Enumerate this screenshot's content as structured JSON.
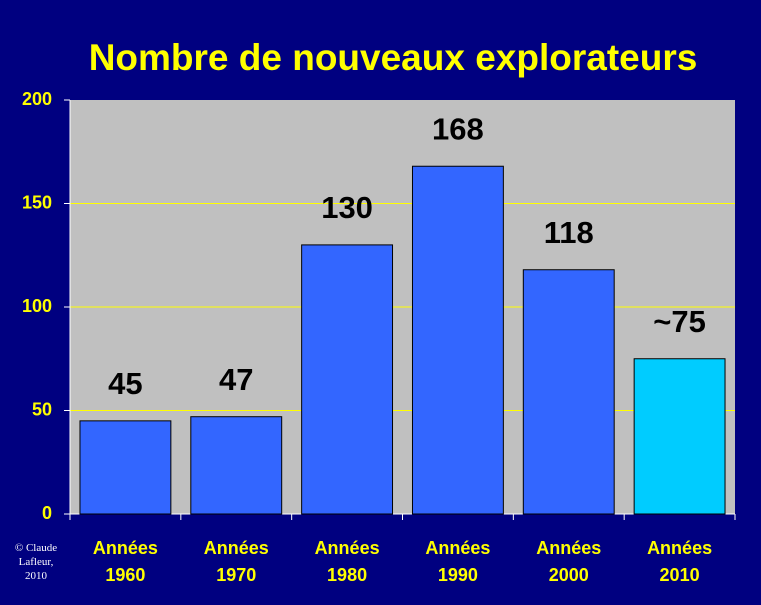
{
  "chart_data": {
    "type": "bar",
    "title": "Nombre de nouveaux explorateurs",
    "categories": [
      "Années\n1960",
      "Années\n1970",
      "Années\n1980",
      "Années\n1990",
      "Années\n2000",
      "Années\n2010"
    ],
    "values": [
      45,
      47,
      130,
      168,
      118,
      75
    ],
    "value_labels": [
      "45",
      "47",
      "130",
      "168",
      "118",
      "~75"
    ],
    "colors": [
      "#3366ff",
      "#3366ff",
      "#3366ff",
      "#3366ff",
      "#3366ff",
      "#00ccff"
    ],
    "ylim": [
      0,
      200
    ],
    "yticks": [
      0,
      50,
      100,
      150,
      200
    ],
    "grid": true,
    "footnote": "© Claude\nLafleur,\n2010"
  }
}
